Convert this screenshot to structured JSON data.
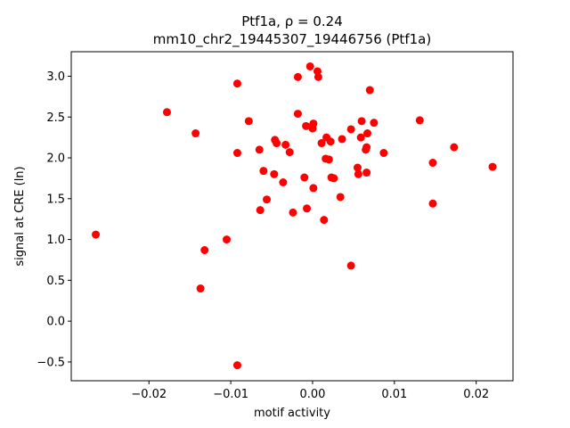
{
  "chart_data": {
    "type": "scatter",
    "title": "Ptf1a, ρ = 0.24",
    "subtitle": "mm10_chr2_19445307_19446756 (Ptf1a)",
    "xlabel": "motif activity",
    "ylabel": "signal at CRE (ln)",
    "xlim": [
      -0.0295,
      0.0245
    ],
    "ylim": [
      -0.73,
      3.3
    ],
    "xticks": [
      -0.02,
      -0.01,
      0.0,
      0.01,
      0.02
    ],
    "xtick_labels": [
      "−0.02",
      "−0.01",
      "0.00",
      "0.01",
      "0.02"
    ],
    "yticks": [
      -0.5,
      0.0,
      0.5,
      1.0,
      1.5,
      2.0,
      2.5,
      3.0
    ],
    "ytick_labels": [
      "−0.5",
      "0.0",
      "0.5",
      "1.0",
      "1.5",
      "2.0",
      "2.5",
      "3.0"
    ],
    "grid": false,
    "point_color": "#ff0000",
    "points": [
      {
        "x": -0.0265,
        "y": 1.06
      },
      {
        "x": -0.0178,
        "y": 2.56
      },
      {
        "x": -0.0143,
        "y": 2.3
      },
      {
        "x": -0.0137,
        "y": 0.4
      },
      {
        "x": -0.0132,
        "y": 0.87
      },
      {
        "x": -0.0105,
        "y": 1.0
      },
      {
        "x": -0.0092,
        "y": 2.91
      },
      {
        "x": -0.0092,
        "y": 2.06
      },
      {
        "x": -0.0092,
        "y": -0.54
      },
      {
        "x": -0.0078,
        "y": 2.45
      },
      {
        "x": -0.0065,
        "y": 2.1
      },
      {
        "x": -0.0064,
        "y": 1.36
      },
      {
        "x": -0.006,
        "y": 1.84
      },
      {
        "x": -0.0056,
        "y": 1.49
      },
      {
        "x": -0.0047,
        "y": 1.8
      },
      {
        "x": -0.0046,
        "y": 2.22
      },
      {
        "x": -0.0044,
        "y": 2.18
      },
      {
        "x": -0.0036,
        "y": 1.7
      },
      {
        "x": -0.0033,
        "y": 2.16
      },
      {
        "x": -0.0028,
        "y": 2.07
      },
      {
        "x": -0.0024,
        "y": 1.33
      },
      {
        "x": -0.0018,
        "y": 2.99
      },
      {
        "x": -0.0018,
        "y": 2.54
      },
      {
        "x": -0.001,
        "y": 1.76
      },
      {
        "x": -0.0008,
        "y": 2.39
      },
      {
        "x": -0.0007,
        "y": 1.38
      },
      {
        "x": -0.0003,
        "y": 3.12
      },
      {
        "x": 0.0,
        "y": 2.36
      },
      {
        "x": 0.0001,
        "y": 2.42
      },
      {
        "x": 0.0001,
        "y": 1.63
      },
      {
        "x": 0.0006,
        "y": 3.06
      },
      {
        "x": 0.0007,
        "y": 2.99
      },
      {
        "x": 0.0011,
        "y": 2.18
      },
      {
        "x": 0.0014,
        "y": 1.24
      },
      {
        "x": 0.0016,
        "y": 1.99
      },
      {
        "x": 0.0017,
        "y": 2.25
      },
      {
        "x": 0.002,
        "y": 1.98
      },
      {
        "x": 0.0022,
        "y": 2.2
      },
      {
        "x": 0.0023,
        "y": 1.76
      },
      {
        "x": 0.0026,
        "y": 1.75
      },
      {
        "x": 0.0034,
        "y": 1.52
      },
      {
        "x": 0.0036,
        "y": 2.23
      },
      {
        "x": 0.0047,
        "y": 2.35
      },
      {
        "x": 0.0047,
        "y": 0.68
      },
      {
        "x": 0.0055,
        "y": 1.88
      },
      {
        "x": 0.0056,
        "y": 1.8
      },
      {
        "x": 0.0059,
        "y": 2.25
      },
      {
        "x": 0.006,
        "y": 2.45
      },
      {
        "x": 0.0065,
        "y": 2.1
      },
      {
        "x": 0.0066,
        "y": 2.13
      },
      {
        "x": 0.0066,
        "y": 1.82
      },
      {
        "x": 0.0067,
        "y": 2.3
      },
      {
        "x": 0.007,
        "y": 2.83
      },
      {
        "x": 0.0075,
        "y": 2.43
      },
      {
        "x": 0.0087,
        "y": 2.06
      },
      {
        "x": 0.0131,
        "y": 2.46
      },
      {
        "x": 0.0147,
        "y": 1.94
      },
      {
        "x": 0.0147,
        "y": 1.44
      },
      {
        "x": 0.0173,
        "y": 2.13
      },
      {
        "x": 0.022,
        "y": 1.89
      }
    ]
  }
}
